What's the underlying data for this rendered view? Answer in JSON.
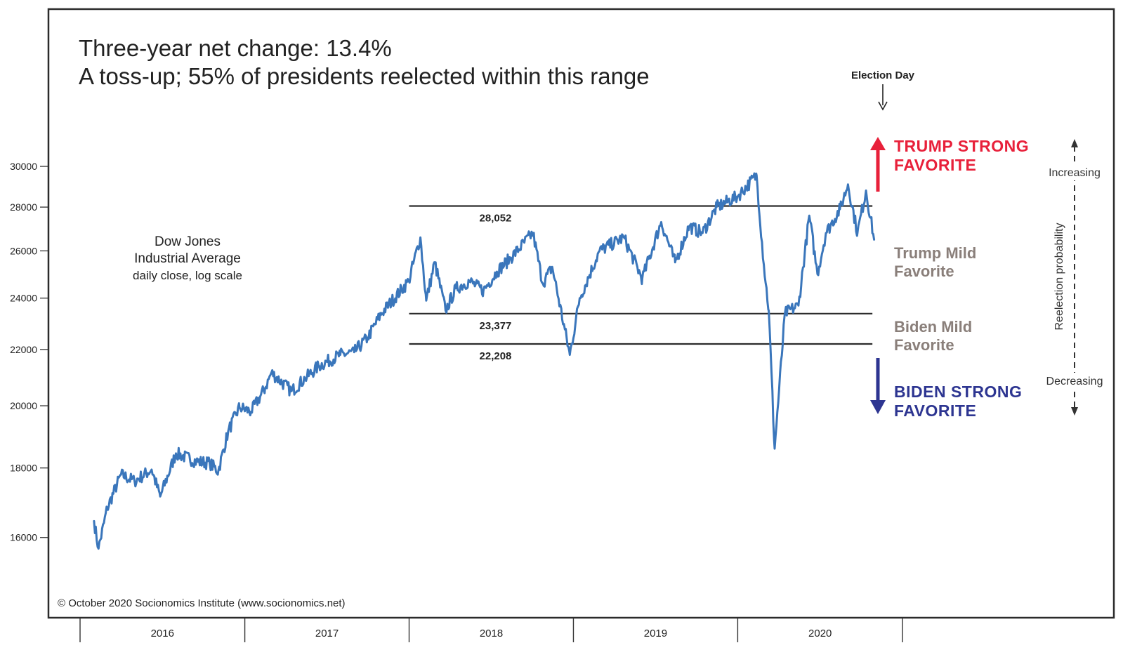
{
  "chart_data": {
    "type": "line",
    "title_line1": "Three-year net change: 13.4%",
    "title_line2": "A toss-up; 55% of presidents reelected within this range",
    "series_label": [
      "Dow Jones",
      "Industrial Average",
      "daily close, log scale"
    ],
    "y_scale": "log",
    "ylim": [
      15000,
      31500
    ],
    "y_ticks": [
      {
        "value": 16000,
        "label": "16000"
      },
      {
        "value": 18000,
        "label": "18000"
      },
      {
        "value": 20000,
        "label": "20000"
      },
      {
        "value": 22000,
        "label": "22000"
      },
      {
        "value": 24000,
        "label": "24000"
      },
      {
        "value": 26000,
        "label": "26000"
      },
      {
        "value": 28000,
        "label": "28000"
      },
      {
        "value": 30000,
        "label": "30000"
      }
    ],
    "x_range": [
      "2016-02",
      "2020-12-31"
    ],
    "x_years": [
      {
        "label": "2016",
        "start": "2016-01-01",
        "end": "2017-01-01"
      },
      {
        "label": "2017",
        "start": "2017-01-01",
        "end": "2018-01-01"
      },
      {
        "label": "2018",
        "start": "2018-01-01",
        "end": "2019-01-01"
      },
      {
        "label": "2019",
        "start": "2019-01-01",
        "end": "2020-01-01"
      },
      {
        "label": "2020",
        "start": "2020-01-01",
        "end": "2021-01-01"
      }
    ],
    "series": [
      {
        "color": "#3a76bb",
        "points": [
          [
            "2016-02-01",
            16450
          ],
          [
            "2016-02-11",
            15700
          ],
          [
            "2016-03-01",
            16800
          ],
          [
            "2016-04-01",
            17800
          ],
          [
            "2016-05-01",
            17600
          ],
          [
            "2016-06-08",
            17950
          ],
          [
            "2016-06-27",
            17150
          ],
          [
            "2016-08-01",
            18450
          ],
          [
            "2016-09-15",
            18200
          ],
          [
            "2016-10-15",
            18150
          ],
          [
            "2016-11-03",
            17900
          ],
          [
            "2016-11-25",
            19150
          ],
          [
            "2016-12-20",
            19950
          ],
          [
            "2017-01-15",
            19800
          ],
          [
            "2017-02-15",
            20600
          ],
          [
            "2017-03-01",
            21150
          ],
          [
            "2017-04-15",
            20500
          ],
          [
            "2017-05-15",
            20950
          ],
          [
            "2017-06-15",
            21400
          ],
          [
            "2017-08-01",
            21800
          ],
          [
            "2017-09-01",
            21900
          ],
          [
            "2017-10-01",
            22450
          ],
          [
            "2017-11-01",
            23400
          ],
          [
            "2017-12-31",
            24700
          ],
          [
            "2018-01-26",
            26600
          ],
          [
            "2018-02-08",
            23900
          ],
          [
            "2018-02-27",
            25500
          ],
          [
            "2018-03-23",
            23500
          ],
          [
            "2018-04-15",
            24400
          ],
          [
            "2018-05-15",
            24700
          ],
          [
            "2018-06-15",
            24300
          ],
          [
            "2018-07-15",
            25100
          ],
          [
            "2018-08-15",
            25700
          ],
          [
            "2018-10-03",
            26800
          ],
          [
            "2018-10-25",
            24600
          ],
          [
            "2018-11-15",
            25300
          ],
          [
            "2018-12-24",
            21800
          ],
          [
            "2019-01-15",
            24000
          ],
          [
            "2019-02-28",
            26000
          ],
          [
            "2019-04-23",
            26600
          ],
          [
            "2019-06-03",
            24800
          ],
          [
            "2019-07-15",
            27300
          ],
          [
            "2019-08-15",
            25500
          ],
          [
            "2019-09-15",
            27100
          ],
          [
            "2019-10-15",
            26800
          ],
          [
            "2019-11-15",
            28000
          ],
          [
            "2019-12-31",
            28500
          ],
          [
            "2020-02-12",
            29550
          ],
          [
            "2020-02-28",
            25400
          ],
          [
            "2020-03-10",
            23500
          ],
          [
            "2020-03-23",
            18600
          ],
          [
            "2020-04-15",
            23400
          ],
          [
            "2020-05-15",
            23700
          ],
          [
            "2020-06-08",
            27600
          ],
          [
            "2020-06-26",
            25000
          ],
          [
            "2020-07-15",
            26800
          ],
          [
            "2020-08-15",
            27900
          ],
          [
            "2020-09-02",
            29100
          ],
          [
            "2020-09-23",
            26800
          ],
          [
            "2020-10-12",
            28800
          ],
          [
            "2020-10-30",
            26500
          ]
        ]
      }
    ],
    "levels": [
      {
        "value": 28052,
        "label": "28,052"
      },
      {
        "value": 23377,
        "label": "23,377"
      },
      {
        "value": 22208,
        "label": "22,208"
      }
    ],
    "levels_start": "2018-01-01",
    "election_day": "2020-11-03",
    "election_label": "Election Day",
    "zones": {
      "trump_strong": [
        "TRUMP STRONG",
        "FAVORITE"
      ],
      "trump_mild": [
        "Trump Mild",
        "Favorite"
      ],
      "biden_mild": [
        "Biden Mild",
        "Favorite"
      ],
      "biden_strong": [
        "BIDEN STRONG",
        "FAVORITE"
      ]
    },
    "probability_axis": {
      "label": "Reelection probability",
      "top": "Increasing",
      "bottom": "Decreasing"
    },
    "copyright": "© October 2020 Socionomics Institute (www.socionomics.net)",
    "colors": {
      "line": "#3a76bb",
      "trump_strong": "#e8203a",
      "mild": "#8a7f7a",
      "biden_strong": "#2d3591",
      "text": "#222222"
    }
  }
}
